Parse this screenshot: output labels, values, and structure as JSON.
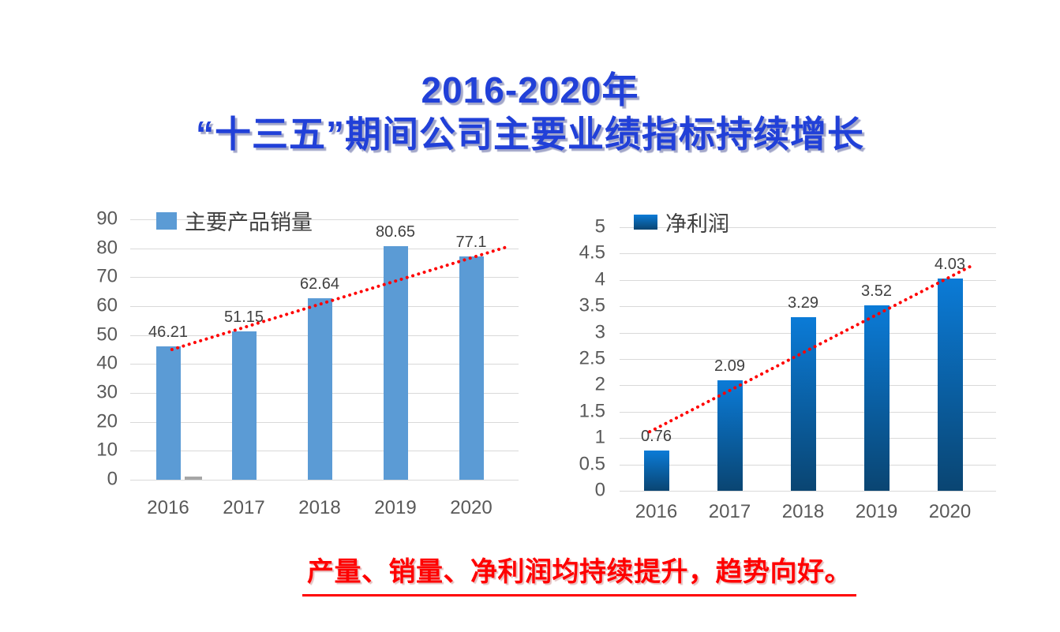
{
  "page": {
    "background": "#FFFFFF"
  },
  "title": {
    "line1": "2016-2020年",
    "line2": "“十三五”期间公司主要业绩指标持续增长",
    "color": "#2140D8"
  },
  "footer": {
    "text": "产量、销量、净利润均持续提升，趋势向好。",
    "color": "#FF0000"
  },
  "chart_data": [
    {
      "type": "bar",
      "legend": "主要产品销量",
      "legend_position": "top-left",
      "categories": [
        "2016",
        "2017",
        "2018",
        "2019",
        "2020"
      ],
      "values": [
        46.21,
        51.15,
        62.64,
        80.65,
        77.1
      ],
      "data_labels": [
        "46.21",
        "51.15",
        "62.64",
        "80.65",
        "77.1"
      ],
      "ylim": [
        0,
        90
      ],
      "yticks": [
        90,
        80,
        70,
        60,
        50,
        40,
        30,
        20,
        10,
        0
      ],
      "grid": true,
      "bar_color": "#5B9BD5",
      "extra_bar": {
        "category_index": 0,
        "value": 1,
        "color": "#A6A6A6"
      },
      "trendline": {
        "color": "#FF0000",
        "style": "dotted",
        "x1_frac": 0.11,
        "y1_value": 45,
        "x2_frac": 1.0,
        "y2_value": 80.7
      }
    },
    {
      "type": "bar",
      "legend": "净利润",
      "legend_position": "top-left",
      "categories": [
        "2016",
        "2017",
        "2018",
        "2019",
        "2020"
      ],
      "values": [
        0.76,
        2.09,
        3.29,
        3.52,
        4.03
      ],
      "data_labels": [
        "0.76",
        "2.09",
        "3.29",
        "3.52",
        "4.03"
      ],
      "ylim": [
        0,
        5
      ],
      "yticks": [
        5,
        4.5,
        4,
        3.5,
        3,
        2.5,
        2,
        1.5,
        1,
        0.5,
        0
      ],
      "grid": true,
      "bar_color_top": "#0B7BD7",
      "bar_color_bottom": "#0A4572",
      "trendline": {
        "color": "#FF0000",
        "style": "dotted",
        "x1_frac": 0.082,
        "y1_value": 1.12,
        "x2_frac": 0.968,
        "y2_value": 4.3
      }
    }
  ]
}
